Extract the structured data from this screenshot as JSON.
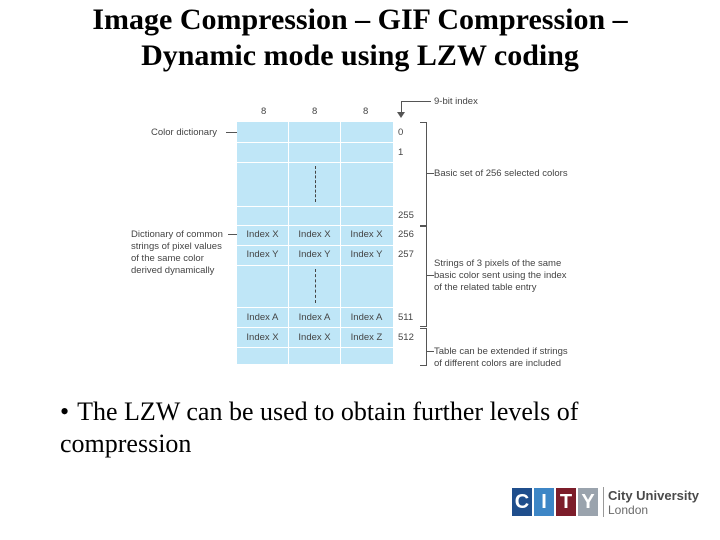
{
  "slide": {
    "title_line1": "Image Compression – GIF Compression –",
    "title_line2": "Dynamic mode using LZW coding",
    "bullet_text": "The LZW can be used to obtain further levels of compression"
  },
  "diagram": {
    "column_widths": [
      "8",
      "8",
      "8"
    ],
    "index_header": "9-bit index",
    "left_labels": {
      "color_dictionary": "Color dictionary",
      "common_strings": [
        "Dictionary of common",
        "strings of pixel values",
        "of the same color",
        "derived dynamically"
      ]
    },
    "index_numbers": [
      "0",
      "1",
      "255",
      "256",
      "257",
      "511",
      "512"
    ],
    "rows": [
      [
        "Index X",
        "Index X",
        "Index X"
      ],
      [
        "Index Y",
        "Index Y",
        "Index Y"
      ],
      [
        "Index A",
        "Index A",
        "Index A"
      ],
      [
        "Index X",
        "Index X",
        "Index Z"
      ]
    ],
    "right_notes": {
      "basic_set": "Basic set of 256 selected colors",
      "strings": [
        "Strings of 3 pixels of the same",
        "basic color sent using the index",
        "of the related table entry"
      ],
      "extended": [
        "Table can be extended if strings",
        "of different colors are included"
      ]
    }
  },
  "logo": {
    "letters": [
      "C",
      "I",
      "T",
      "Y"
    ],
    "colors": [
      "#1f4e8c",
      "#3d86c6",
      "#7c1d2a",
      "#9aa3ad"
    ],
    "name": "City University",
    "sub": "London"
  }
}
